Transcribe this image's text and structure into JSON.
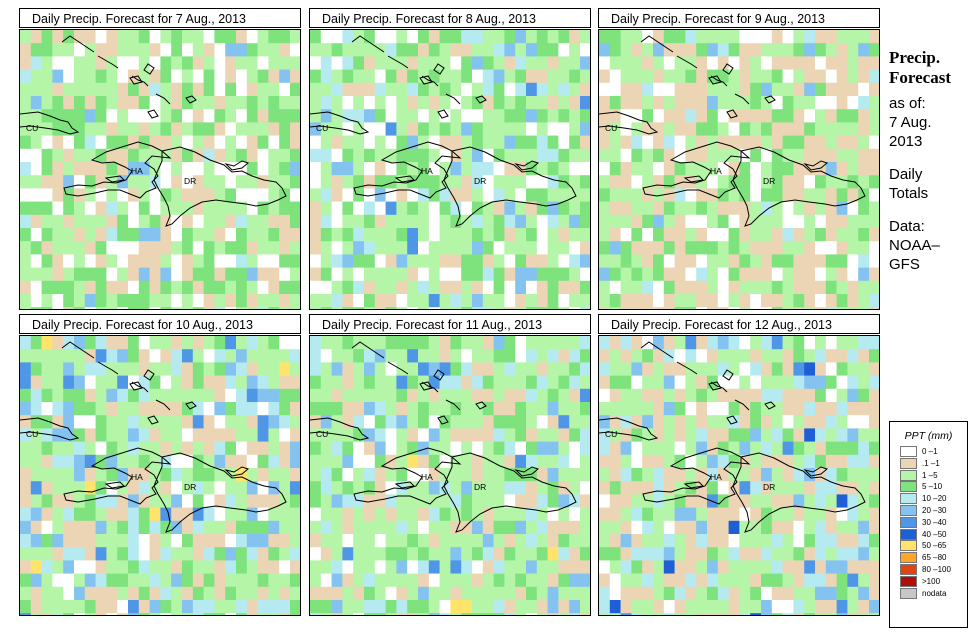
{
  "panels": [
    {
      "title": "Daily Precip. Forecast for  7 Aug., 2013"
    },
    {
      "title": "Daily Precip. Forecast for  8 Aug., 2013"
    },
    {
      "title": "Daily Precip. Forecast for  9 Aug., 2013"
    },
    {
      "title": "Daily Precip. Forecast for  10 Aug., 2013"
    },
    {
      "title": "Daily Precip. Forecast for  11 Aug., 2013"
    },
    {
      "title": "Daily Precip. Forecast for  12 Aug., 2013"
    }
  ],
  "map_labels": {
    "cuba": "CU",
    "haiti": "HA",
    "dr": "DR"
  },
  "side": {
    "title_line1": "Precip.",
    "title_line2": "Forecast",
    "as_of": "as of:",
    "date_line1": "7 Aug.",
    "date_line2": "2013",
    "totals_line1": "Daily",
    "totals_line2": "Totals",
    "data_line1": "Data:",
    "data_line2": "NOAA–",
    "data_line3": "GFS"
  },
  "legend": {
    "title": "PPT (mm)",
    "items": [
      {
        "label": "0 –1",
        "color": "#ffffff"
      },
      {
        "label": ".1 –1",
        "color": "#ecd5b5"
      },
      {
        "label": "1 –5",
        "color": "#b4f5a8"
      },
      {
        "label": "5 –10",
        "color": "#7ee27d"
      },
      {
        "label": "10 –20",
        "color": "#b5ebf0"
      },
      {
        "label": "20 –30",
        "color": "#84c2ef"
      },
      {
        "label": "30 –40",
        "color": "#4f97e6"
      },
      {
        "label": "40 –50",
        "color": "#1f5fd6"
      },
      {
        "label": "50 –65",
        "color": "#ffe36b"
      },
      {
        "label": "65 –80",
        "color": "#ffa32a"
      },
      {
        "label": "80 –100",
        "color": "#e14414"
      },
      {
        "label": ">100",
        "color": "#b00d0d"
      },
      {
        "label": "nodata",
        "color": "#c7c7c7"
      }
    ]
  }
}
